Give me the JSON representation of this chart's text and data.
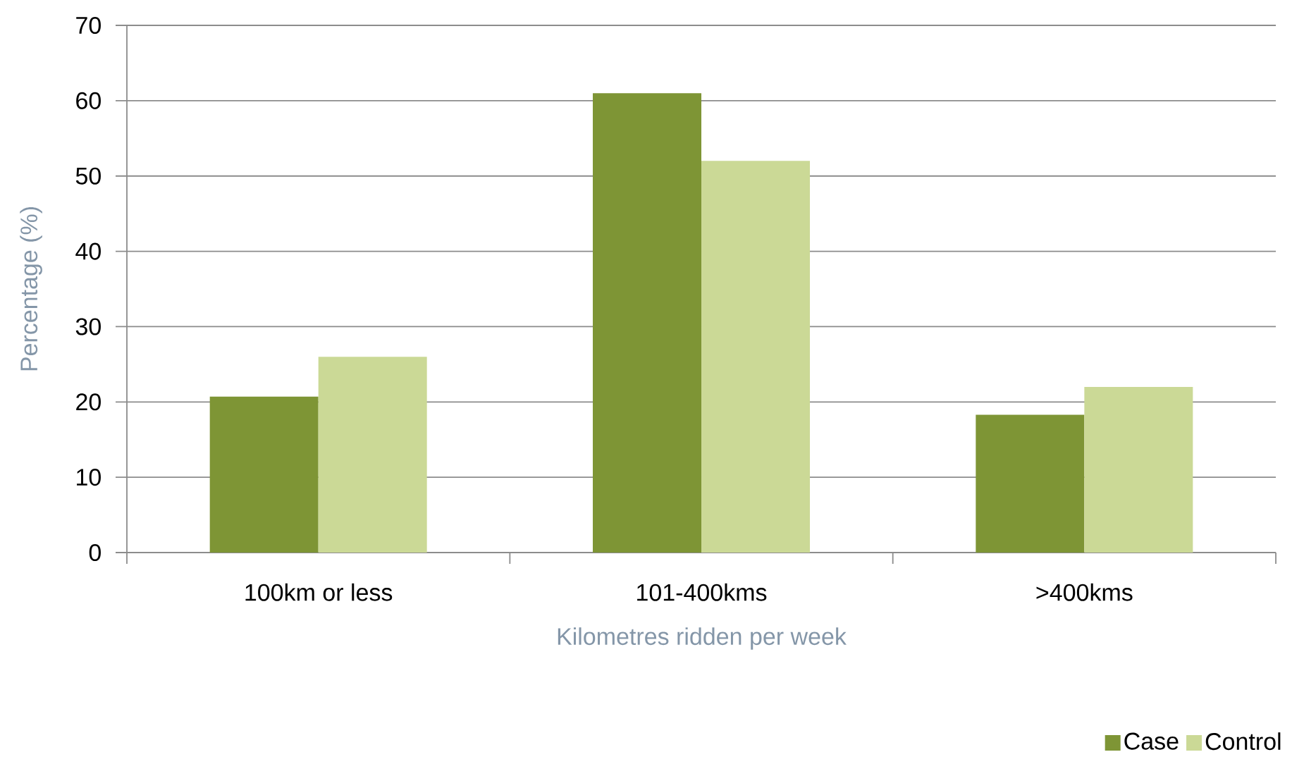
{
  "chart_data": {
    "type": "bar",
    "xlabel": "Kilometres ridden per week",
    "ylabel": "Percentage (%)",
    "categories": [
      "100km or less",
      "101-400kms",
      ">400kms"
    ],
    "series": [
      {
        "name": "Case",
        "color": "#7e9535",
        "values": [
          20.7,
          61,
          18.3
        ]
      },
      {
        "name": "Control",
        "color": "#cbd996",
        "values": [
          26,
          52,
          22
        ]
      }
    ],
    "ylim": [
      0,
      70
    ],
    "yticks": [
      0,
      10,
      20,
      30,
      40,
      50,
      60,
      70
    ],
    "grid": "y",
    "legend": "bottom right"
  }
}
